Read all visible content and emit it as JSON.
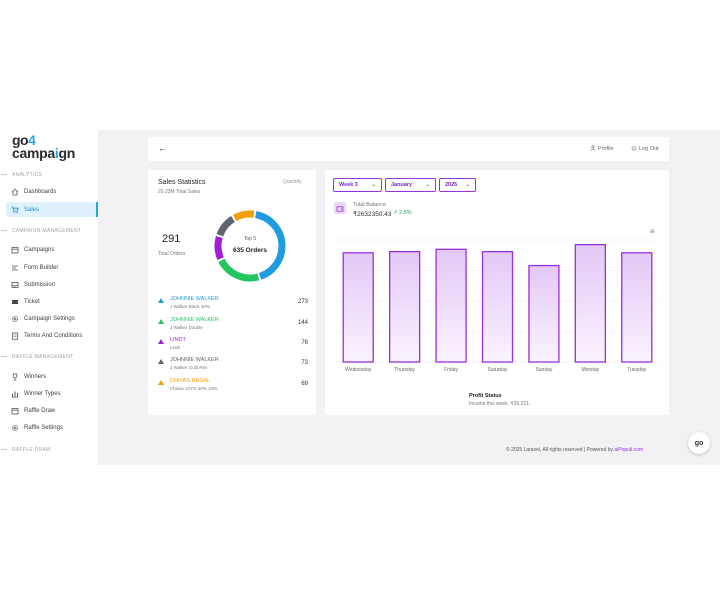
{
  "logo": {
    "line1_a": "go",
    "line1_b": "4",
    "line2_a": "campa",
    "line2_b": "i",
    "line2_c": "gn"
  },
  "sidebar": {
    "sections": [
      "ANALYTICS",
      "CAMPAIGN MANAGEMENT",
      "RAFFLE MANAGEMENT",
      "RAFFLE DRAW"
    ],
    "items": [
      {
        "label": "Dashboards",
        "icon": "home-icon"
      },
      {
        "label": "Sales",
        "icon": "cart-icon",
        "active": true
      },
      {
        "label": "Campaigns",
        "icon": "calendar-icon"
      },
      {
        "label": "Form Builder",
        "icon": "form-icon"
      },
      {
        "label": "Submission",
        "icon": "inbox-icon"
      },
      {
        "label": "Ticket",
        "icon": "ticket-icon"
      },
      {
        "label": "Campaign Settings",
        "icon": "gear-icon"
      },
      {
        "label": "Terms And Conditions",
        "icon": "document-icon"
      },
      {
        "label": "Winners",
        "icon": "trophy-icon"
      },
      {
        "label": "Winner Types",
        "icon": "bar-chart-icon"
      },
      {
        "label": "Raffle Draw",
        "icon": "calendar-icon"
      },
      {
        "label": "Raffle Settings",
        "icon": "gear-icon"
      }
    ]
  },
  "topbar": {
    "profile": "Profile",
    "logout": "Log Out"
  },
  "stats": {
    "title": "Sales Statistics",
    "subtitle": "20.23M Total Sales",
    "quantity_label": "Quantity",
    "total_orders": "291",
    "total_orders_label": "Total Orders",
    "donut_top": "Top 5",
    "donut_center": "635 Orders",
    "donut_colors": [
      "#1f9be0",
      "#22c55e",
      "#a11ed8",
      "#5f6370",
      "#f59e0b"
    ],
    "donut_values": [
      273,
      144,
      76,
      73,
      69
    ],
    "products": [
      {
        "name": "JOHNNIE WALKER",
        "desc": "J Walker Black 40%",
        "count": "273",
        "color": "#1f9be0"
      },
      {
        "name": "JOHNNIE WALKER",
        "desc": "J Walker Double",
        "count": "144",
        "color": "#22c55e"
      },
      {
        "name": "LINDT",
        "desc": "Lindt",
        "count": "76",
        "color": "#a11ed8"
      },
      {
        "name": "JOHNNIE WALKER",
        "desc": "J Walker Gold Res",
        "count": "73",
        "color": "#5f6370"
      },
      {
        "name": "CHIVAS REGAL",
        "desc": "Chivas 12YO 40% 100c",
        "count": "69",
        "color": "#f59e0b"
      }
    ]
  },
  "balance": {
    "week": "Week 3",
    "month": "January",
    "year": "2025",
    "total_label": "Total Balance",
    "total_value": "₹2632350.43",
    "change": "2.5%",
    "profit_title": "Profit Status",
    "profit_sub": "Income this week: ₹26,321."
  },
  "chart_data": {
    "type": "bar",
    "categories": [
      "Wednesday",
      "Thursday",
      "Friday",
      "Saturday",
      "Sunday",
      "Monday",
      "Tuesday"
    ],
    "values": [
      94,
      95,
      97,
      95,
      83,
      101,
      94
    ],
    "bar_color": "#9b30d9",
    "grid": true
  },
  "footer": {
    "text": "© 2025 Laravel, All rights reserved | Powered by ",
    "link": "aiPopuli.com"
  },
  "chat": {
    "label": "go"
  }
}
